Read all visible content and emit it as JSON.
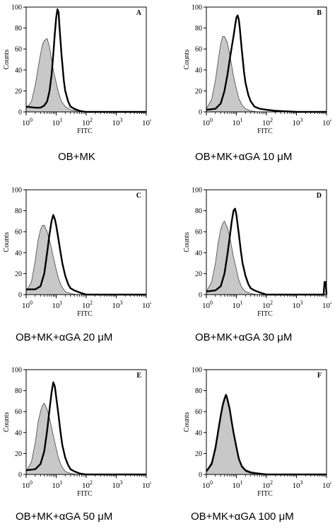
{
  "chart_data": [
    {
      "type": "area",
      "panel_letter": "A",
      "caption": "OB+MK",
      "ylabel": "Counts",
      "xlabel": "FITC",
      "xscale": "log",
      "xlim": [
        1,
        10000
      ],
      "ylim": [
        0,
        100
      ],
      "yticks": [
        0,
        20,
        40,
        60,
        80,
        100
      ],
      "xticks": [
        1,
        10,
        100,
        1000,
        10000
      ],
      "xtick_labels": [
        {
          "base": "10",
          "exp": "0"
        },
        {
          "base": "10",
          "exp": "1"
        },
        {
          "base": "10",
          "exp": "2"
        },
        {
          "base": "10",
          "exp": "3"
        },
        {
          "base": "10",
          "exp": "4"
        }
      ],
      "series": [
        {
          "style": "filled-gray",
          "x": [
            1,
            1.5,
            2,
            2.5,
            3,
            3.5,
            4,
            5,
            6,
            7,
            8,
            10,
            12,
            15,
            20,
            30,
            50,
            100,
            1000,
            10000
          ],
          "values": [
            3,
            10,
            25,
            42,
            55,
            64,
            68,
            70,
            62,
            50,
            40,
            28,
            18,
            10,
            5,
            2,
            1,
            0,
            0,
            0
          ]
        },
        {
          "style": "thick-line",
          "x": [
            1,
            2,
            3,
            4,
            5,
            6,
            7,
            8,
            9,
            10,
            11,
            12,
            13,
            15,
            18,
            20,
            25,
            30,
            40,
            60,
            100,
            1000,
            10000
          ],
          "values": [
            5,
            4,
            4,
            6,
            10,
            20,
            35,
            55,
            75,
            90,
            98,
            95,
            80,
            55,
            30,
            20,
            10,
            5,
            3,
            1,
            0,
            0,
            0
          ]
        }
      ]
    },
    {
      "type": "area",
      "panel_letter": "B",
      "caption": "OB+MK+αGA 10 μM",
      "ylabel": "Counts",
      "xlabel": "FITC",
      "xscale": "log",
      "xlim": [
        1,
        10000
      ],
      "ylim": [
        0,
        100
      ],
      "yticks": [
        0,
        20,
        40,
        60,
        80,
        100
      ],
      "xticks": [
        1,
        10,
        100,
        1000,
        10000
      ],
      "xtick_labels": [
        {
          "base": "10",
          "exp": "0"
        },
        {
          "base": "10",
          "exp": "1"
        },
        {
          "base": "10",
          "exp": "2"
        },
        {
          "base": "10",
          "exp": "3"
        },
        {
          "base": "10",
          "exp": "4"
        }
      ],
      "series": [
        {
          "style": "filled-gray",
          "x": [
            1,
            1.5,
            2,
            2.5,
            3,
            3.5,
            4,
            5,
            6,
            7,
            8,
            10,
            12,
            15,
            20,
            30,
            50,
            100,
            1000,
            10000
          ],
          "values": [
            3,
            12,
            30,
            50,
            65,
            72,
            72,
            66,
            55,
            44,
            34,
            22,
            13,
            7,
            3,
            1,
            0,
            0,
            0,
            0
          ]
        },
        {
          "style": "thick-line",
          "x": [
            1,
            2,
            3,
            4,
            5,
            6,
            7,
            8,
            9,
            10,
            11,
            12,
            13,
            15,
            18,
            20,
            25,
            30,
            40,
            60,
            100,
            200,
            1000,
            10000
          ],
          "values": [
            2,
            3,
            8,
            20,
            35,
            50,
            62,
            72,
            82,
            90,
            92,
            88,
            80,
            60,
            38,
            28,
            16,
            10,
            5,
            3,
            2,
            1,
            0,
            0
          ]
        }
      ]
    },
    {
      "type": "area",
      "panel_letter": "C",
      "caption": "OB+MK+αGA 20 μM",
      "ylabel": "Counts",
      "xlabel": "FITC",
      "xscale": "log",
      "xlim": [
        1,
        10000
      ],
      "ylim": [
        0,
        100
      ],
      "yticks": [
        0,
        20,
        40,
        60,
        80,
        100
      ],
      "xticks": [
        1,
        10,
        100,
        1000,
        10000
      ],
      "xtick_labels": [
        {
          "base": "10",
          "exp": "0"
        },
        {
          "base": "10",
          "exp": "1"
        },
        {
          "base": "10",
          "exp": "2"
        },
        {
          "base": "10",
          "exp": "3"
        },
        {
          "base": "10",
          "exp": "4"
        }
      ],
      "series": [
        {
          "style": "filled-gray",
          "x": [
            1,
            1.5,
            2,
            2.5,
            3,
            3.5,
            4,
            5,
            6,
            7,
            8,
            10,
            12,
            15,
            20,
            30,
            50,
            100,
            1000,
            10000
          ],
          "values": [
            3,
            12,
            32,
            52,
            62,
            66,
            66,
            60,
            52,
            44,
            36,
            24,
            15,
            8,
            3,
            1,
            0,
            0,
            0,
            0
          ]
        },
        {
          "style": "thick-line",
          "x": [
            1,
            2,
            3,
            4,
            5,
            6,
            7,
            8,
            9,
            10,
            12,
            14,
            16,
            20,
            25,
            30,
            40,
            60,
            100,
            1000,
            10000
          ],
          "values": [
            5,
            5,
            8,
            20,
            40,
            58,
            70,
            76,
            72,
            66,
            52,
            40,
            30,
            18,
            10,
            6,
            4,
            2,
            0,
            0,
            0
          ]
        }
      ]
    },
    {
      "type": "area",
      "panel_letter": "D",
      "caption": "OB+MK+αGA 30 μM",
      "ylabel": "Counts",
      "xlabel": "FITC",
      "xscale": "log",
      "xlim": [
        1,
        10000
      ],
      "ylim": [
        0,
        100
      ],
      "yticks": [
        0,
        20,
        40,
        60,
        80,
        100
      ],
      "xticks": [
        1,
        10,
        100,
        1000,
        10000
      ],
      "xtick_labels": [
        {
          "base": "10",
          "exp": "0"
        },
        {
          "base": "10",
          "exp": "1"
        },
        {
          "base": "10",
          "exp": "2"
        },
        {
          "base": "10",
          "exp": "3"
        },
        {
          "base": "10",
          "exp": "4"
        }
      ],
      "series": [
        {
          "style": "filled-gray",
          "x": [
            1,
            1.5,
            2,
            2.5,
            3,
            3.5,
            4,
            5,
            6,
            7,
            8,
            10,
            12,
            15,
            20,
            30,
            50,
            100,
            1000,
            10000
          ],
          "values": [
            3,
            12,
            30,
            50,
            62,
            68,
            70,
            64,
            55,
            45,
            36,
            24,
            14,
            7,
            3,
            1,
            0,
            0,
            0,
            0
          ]
        },
        {
          "style": "thick-line",
          "x": [
            1,
            2,
            3,
            4,
            5,
            6,
            7,
            8,
            9,
            10,
            12,
            14,
            16,
            20,
            25,
            30,
            40,
            60,
            100,
            1000,
            8000,
            8600,
            9400,
            10000
          ],
          "values": [
            3,
            4,
            8,
            20,
            38,
            55,
            70,
            80,
            82,
            76,
            58,
            42,
            30,
            18,
            10,
            6,
            4,
            2,
            0,
            0,
            0,
            12,
            12,
            0
          ]
        }
      ]
    },
    {
      "type": "area",
      "panel_letter": "E",
      "caption": "OB+MK+αGA 50 μM",
      "ylabel": "Counts",
      "xlabel": "FITC",
      "xscale": "log",
      "xlim": [
        1,
        10000
      ],
      "ylim": [
        0,
        100
      ],
      "yticks": [
        0,
        20,
        40,
        60,
        80,
        100
      ],
      "xticks": [
        1,
        10,
        100,
        1000,
        10000
      ],
      "xtick_labels": [
        {
          "base": "10",
          "exp": "0"
        },
        {
          "base": "10",
          "exp": "1"
        },
        {
          "base": "10",
          "exp": "2"
        },
        {
          "base": "10",
          "exp": "3"
        },
        {
          "base": "10",
          "exp": "4"
        }
      ],
      "series": [
        {
          "style": "filled-gray",
          "x": [
            1,
            1.5,
            2,
            2.5,
            3,
            3.5,
            4,
            5,
            6,
            7,
            8,
            10,
            12,
            15,
            20,
            30,
            50,
            100,
            1000,
            10000
          ],
          "values": [
            3,
            12,
            30,
            50,
            60,
            66,
            68,
            62,
            54,
            45,
            37,
            25,
            15,
            8,
            3,
            1,
            0,
            0,
            0,
            0
          ]
        },
        {
          "style": "thick-line",
          "x": [
            1,
            2,
            3,
            4,
            5,
            6,
            7,
            8,
            9,
            10,
            12,
            14,
            16,
            20,
            25,
            30,
            40,
            60,
            100,
            1000,
            10000
          ],
          "values": [
            4,
            5,
            10,
            22,
            42,
            62,
            78,
            88,
            84,
            74,
            56,
            40,
            28,
            16,
            9,
            5,
            3,
            1,
            0,
            0,
            0
          ]
        }
      ]
    },
    {
      "type": "area",
      "panel_letter": "F",
      "caption": "OB+MK+αGA 100 μM",
      "ylabel": "Counts",
      "xlabel": "FITC",
      "xscale": "log",
      "xlim": [
        1,
        10000
      ],
      "ylim": [
        0,
        100
      ],
      "yticks": [
        0,
        20,
        40,
        60,
        80,
        100
      ],
      "xticks": [
        1,
        10,
        100,
        1000,
        10000
      ],
      "xtick_labels": [
        {
          "base": "10",
          "exp": "0"
        },
        {
          "base": "10",
          "exp": "1"
        },
        {
          "base": "10",
          "exp": "2"
        },
        {
          "base": "10",
          "exp": "3"
        },
        {
          "base": "10",
          "exp": "4"
        }
      ],
      "series": [
        {
          "style": "filled-gray",
          "x": [
            1,
            1.5,
            2,
            2.5,
            3,
            3.5,
            4,
            4.5,
            5,
            6,
            7,
            8,
            10,
            12,
            15,
            20,
            30,
            50,
            100,
            1000,
            10000
          ],
          "values": [
            3,
            12,
            28,
            45,
            58,
            68,
            74,
            75,
            72,
            62,
            50,
            40,
            26,
            15,
            7,
            3,
            1,
            0,
            0,
            0,
            0
          ]
        },
        {
          "style": "thick-line",
          "x": [
            1,
            1.5,
            2,
            2.5,
            3,
            3.5,
            4,
            4.5,
            5,
            6,
            7,
            8,
            10,
            12,
            15,
            20,
            30,
            50,
            100,
            1000,
            10000
          ],
          "values": [
            3,
            10,
            25,
            42,
            56,
            66,
            72,
            76,
            72,
            62,
            50,
            40,
            26,
            15,
            8,
            4,
            2,
            1,
            0,
            0,
            0
          ]
        }
      ]
    }
  ]
}
